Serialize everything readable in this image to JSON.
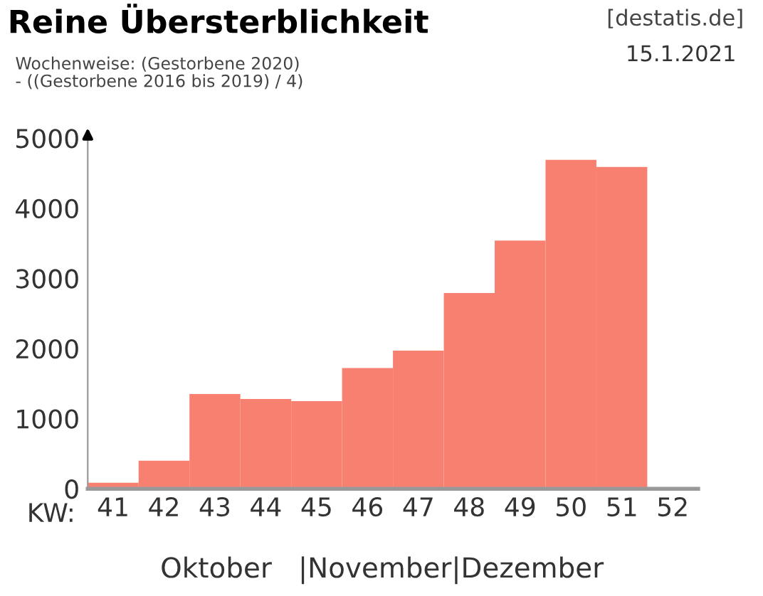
{
  "chart_data": {
    "type": "bar",
    "title": "Reine Übersterblichkeit",
    "subtitle": "Wochenweise: (Gestorbene 2020)\n- ((Gestorbene 2016 bis 2019) / 4)",
    "xlabel": "KW:",
    "categories": [
      "41",
      "42",
      "43",
      "44",
      "45",
      "46",
      "47",
      "48",
      "49",
      "50",
      "51",
      "52"
    ],
    "values": [
      85,
      400,
      1350,
      1280,
      1250,
      1720,
      1970,
      2790,
      3540,
      4690,
      4590,
      null
    ],
    "color": "#f88070",
    "ylim": [
      0,
      5100
    ],
    "yticks": [
      0,
      1000,
      2000,
      3000,
      4000,
      5000
    ],
    "grid": false,
    "legend": false,
    "annotations": [
      "[destatis.de]",
      "15.1.2021",
      "Oktober   |November|Dezember"
    ]
  }
}
